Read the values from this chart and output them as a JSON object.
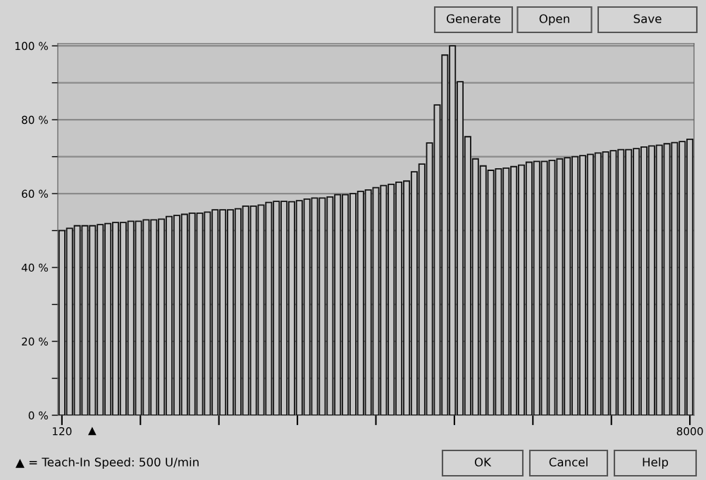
{
  "chart_data": {
    "type": "bar",
    "x": [
      120,
      216,
      312,
      408,
      504,
      601,
      697,
      793,
      889,
      985,
      1081,
      1177,
      1273,
      1369,
      1465,
      1562,
      1658,
      1754,
      1850,
      1946,
      2042,
      2138,
      2234,
      2330,
      2426,
      2523,
      2619,
      2715,
      2811,
      2907,
      3003,
      3099,
      3195,
      3291,
      3387,
      3484,
      3580,
      3676,
      3772,
      3868,
      3964,
      4060,
      4156,
      4252,
      4348,
      4445,
      4541,
      4637,
      4733,
      4829,
      4925,
      5021,
      5117,
      5213,
      5309,
      5406,
      5502,
      5598,
      5694,
      5790,
      5886,
      5982,
      6078,
      6174,
      6270,
      6367,
      6463,
      6559,
      6655,
      6751,
      6847,
      6943,
      7039,
      7135,
      7231,
      7328,
      7424,
      7520,
      7616,
      7712,
      7808,
      7904,
      8000
    ],
    "values": [
      50.0,
      50.6,
      51.3,
      51.3,
      51.3,
      51.6,
      51.9,
      52.2,
      52.2,
      52.5,
      52.5,
      52.9,
      52.9,
      53.1,
      53.8,
      54.1,
      54.4,
      54.7,
      54.7,
      55.0,
      55.6,
      55.6,
      55.6,
      55.9,
      56.6,
      56.6,
      56.9,
      57.6,
      57.9,
      57.9,
      57.8,
      58.1,
      58.5,
      58.8,
      58.8,
      59.1,
      59.7,
      59.7,
      60.0,
      60.6,
      61.0,
      61.6,
      62.2,
      62.5,
      63.1,
      63.4,
      65.9,
      68.0,
      73.7,
      84.0,
      97.5,
      100,
      90.3,
      75.4,
      69.4,
      67.5,
      66.3,
      66.7,
      66.9,
      67.3,
      67.7,
      68.5,
      68.7,
      68.7,
      69.0,
      69.4,
      69.7,
      70.0,
      70.3,
      70.6,
      71.0,
      71.3,
      71.6,
      71.9,
      71.9,
      72.2,
      72.6,
      72.9,
      73.1,
      73.5,
      73.8,
      74.1,
      74.7
    ],
    "color": "#c6c6c6",
    "xlim": [
      68,
      8052
    ],
    "xticks": [
      {
        "value": 120,
        "label": "120"
      },
      {
        "value": 1105,
        "label": null
      },
      {
        "value": 2090,
        "label": null
      },
      {
        "value": 3075,
        "label": null
      },
      {
        "value": 4060,
        "label": null
      },
      {
        "value": 5045,
        "label": null
      },
      {
        "value": 6030,
        "label": null
      },
      {
        "value": 7015,
        "label": null
      },
      {
        "value": 8000,
        "label": "8000"
      }
    ],
    "ylim": [
      0,
      100.6
    ],
    "yticks": [
      {
        "value": 0,
        "label": "0 %"
      },
      {
        "value": 10,
        "label": null
      },
      {
        "value": 20,
        "label": "20 %"
      },
      {
        "value": 30,
        "label": null
      },
      {
        "value": 40,
        "label": "40 %"
      },
      {
        "value": 50,
        "label": null
      },
      {
        "value": 60,
        "label": "60 %"
      },
      {
        "value": 70,
        "label": null
      },
      {
        "value": 80,
        "label": "80 %"
      },
      {
        "value": 90,
        "label": null
      },
      {
        "value": 100,
        "label": "100 %"
      }
    ],
    "grid": "y",
    "annotations": [
      "Generate",
      "Open",
      "Save",
      "OK",
      "Cancel",
      "Help",
      "▲ = Teach-In Speed: 500 U/min",
      {
        "text": "▲",
        "x": 500,
        "y": 0
      }
    ]
  }
}
